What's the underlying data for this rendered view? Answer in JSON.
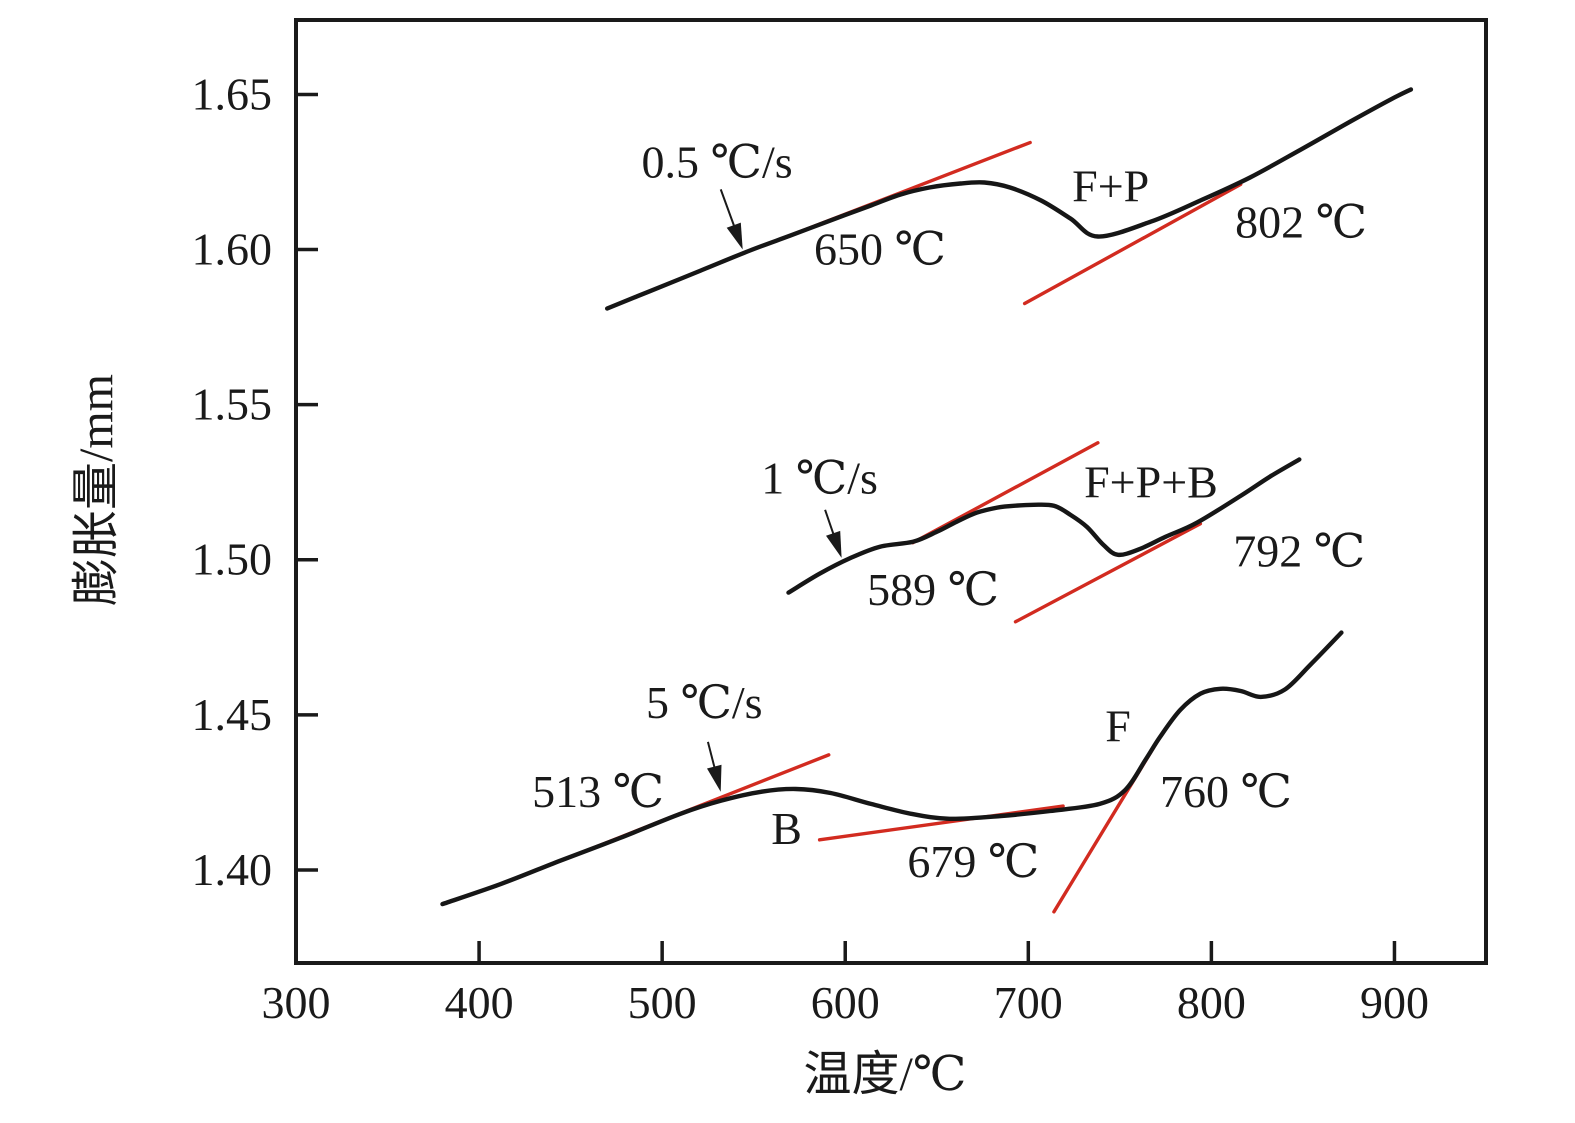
{
  "chart_data": {
    "type": "line",
    "title": "",
    "xlabel": "温度/℃",
    "ylabel": "膨胀量/mm",
    "xlim": [
      300,
      950
    ],
    "ylim": [
      1.37,
      1.674
    ],
    "grid": false,
    "legend_position": "none",
    "x_ticks": [
      "300",
      "400",
      "500",
      "600",
      "700",
      "800",
      "900"
    ],
    "y_ticks": [
      "1.40",
      "1.45",
      "1.50",
      "1.55",
      "1.60",
      "1.65"
    ],
    "series": [
      {
        "name": "0.5 ℃/s",
        "color": "#161616",
        "points": [
          [
            470,
            1.581
          ],
          [
            493,
            1.5865
          ],
          [
            521,
            1.5932
          ],
          [
            548,
            1.5997
          ],
          [
            570,
            1.6045
          ],
          [
            592,
            1.6094
          ],
          [
            614,
            1.6142
          ],
          [
            630,
            1.6177
          ],
          [
            646,
            1.62
          ],
          [
            663,
            1.6213
          ],
          [
            676,
            1.6216
          ],
          [
            690,
            1.62
          ],
          [
            707,
            1.6158
          ],
          [
            723,
            1.61
          ],
          [
            738,
            1.6042
          ],
          [
            767,
            1.609
          ],
          [
            794,
            1.6158
          ],
          [
            821,
            1.6232
          ],
          [
            849,
            1.6323
          ],
          [
            876,
            1.6413
          ],
          [
            898,
            1.6484
          ],
          [
            909,
            1.6516
          ]
        ]
      },
      {
        "name": "1 ℃/s",
        "color": "#161616",
        "points": [
          [
            569,
            1.4894
          ],
          [
            586,
            1.4955
          ],
          [
            603,
            1.5006
          ],
          [
            619,
            1.5042
          ],
          [
            637,
            1.5058
          ],
          [
            650,
            1.509
          ],
          [
            661,
            1.5123
          ],
          [
            672,
            1.5152
          ],
          [
            683,
            1.5168
          ],
          [
            692,
            1.5174
          ],
          [
            703,
            1.5177
          ],
          [
            714,
            1.5174
          ],
          [
            723,
            1.5145
          ],
          [
            732,
            1.5106
          ],
          [
            741,
            1.5048
          ],
          [
            749,
            1.5016
          ],
          [
            761,
            1.5035
          ],
          [
            775,
            1.5074
          ],
          [
            792,
            1.5119
          ],
          [
            816,
            1.5206
          ],
          [
            832,
            1.5268
          ],
          [
            848,
            1.5323
          ]
        ]
      },
      {
        "name": "5 ℃/s",
        "color": "#161616",
        "points": [
          [
            380,
            1.389
          ],
          [
            412,
            1.3955
          ],
          [
            444,
            1.4029
          ],
          [
            477,
            1.4103
          ],
          [
            510,
            1.4181
          ],
          [
            532,
            1.4223
          ],
          [
            554,
            1.4252
          ],
          [
            573,
            1.4261
          ],
          [
            592,
            1.4248
          ],
          [
            614,
            1.4213
          ],
          [
            636,
            1.4181
          ],
          [
            657,
            1.4165
          ],
          [
            685,
            1.4174
          ],
          [
            712,
            1.419
          ],
          [
            739,
            1.4213
          ],
          [
            753,
            1.4258
          ],
          [
            764,
            1.4355
          ],
          [
            772,
            1.4429
          ],
          [
            783,
            1.4516
          ],
          [
            794,
            1.4568
          ],
          [
            805,
            1.4584
          ],
          [
            816,
            1.4577
          ],
          [
            827,
            1.4558
          ],
          [
            840,
            1.4581
          ],
          [
            854,
            1.4661
          ],
          [
            871,
            1.4765
          ]
        ]
      }
    ],
    "tangent_lines": [
      {
        "name": "tangent-650",
        "color": "#d22b20",
        "from": [
          557,
          1.6016
        ],
        "to": [
          701,
          1.6345
        ]
      },
      {
        "name": "tangent-802",
        "color": "#d22b20",
        "from": [
          698,
          1.5826
        ],
        "to": [
          816,
          1.621
        ]
      },
      {
        "name": "tangent-589",
        "color": "#d22b20",
        "from": [
          637,
          1.5055
        ],
        "to": [
          738,
          1.5377
        ]
      },
      {
        "name": "tangent-792",
        "color": "#d22b20",
        "from": [
          693,
          1.48
        ],
        "to": [
          794,
          1.5116
        ]
      },
      {
        "name": "tangent-513",
        "color": "#d22b20",
        "from": [
          458,
          1.4061
        ],
        "to": [
          591,
          1.4371
        ]
      },
      {
        "name": "tangent-679",
        "color": "#d22b20",
        "from": [
          586,
          1.4097
        ],
        "to": [
          719,
          1.4206
        ]
      },
      {
        "name": "tangent-760",
        "color": "#d22b20",
        "from": [
          714,
          1.3865
        ],
        "to": [
          772,
          1.4429
        ]
      }
    ],
    "annotations": [
      {
        "name": "rate-label-0.5",
        "text": "0.5 ℃/s",
        "x": 530,
        "y": 1.6284
      },
      {
        "name": "temp-label-650",
        "text": "650 ℃",
        "x": 619,
        "y": 1.6003
      },
      {
        "name": "phase-label-fp",
        "text": "F+P",
        "x": 745,
        "y": 1.6206
      },
      {
        "name": "temp-label-802",
        "text": "802 ℃",
        "x": 849,
        "y": 1.609
      },
      {
        "name": "rate-label-1",
        "text": "1 ℃/s",
        "x": 586,
        "y": 1.5265
      },
      {
        "name": "phase-label-fpb",
        "text": "F+P+B",
        "x": 767,
        "y": 1.5252
      },
      {
        "name": "temp-label-589",
        "text": "589 ℃",
        "x": 648,
        "y": 1.4906
      },
      {
        "name": "temp-label-792",
        "text": "792 ℃",
        "x": 848,
        "y": 1.5029
      },
      {
        "name": "rate-label-5",
        "text": "5 ℃/s",
        "x": 523,
        "y": 1.4542
      },
      {
        "name": "temp-label-513",
        "text": "513 ℃",
        "x": 465,
        "y": 1.4255
      },
      {
        "name": "phase-label-b",
        "text": "B",
        "x": 568,
        "y": 1.4135
      },
      {
        "name": "temp-label-679",
        "text": "679 ℃",
        "x": 670,
        "y": 1.4029
      },
      {
        "name": "phase-label-f",
        "text": "F",
        "x": 749,
        "y": 1.4465
      },
      {
        "name": "temp-label-760",
        "text": "760 ℃",
        "x": 808,
        "y": 1.4255
      }
    ],
    "arrows": [
      {
        "name": "arrow-rate-0.5",
        "from": [
          532,
          1.6194
        ],
        "to": [
          544,
          1.6
        ]
      },
      {
        "name": "arrow-rate-1",
        "from": [
          589,
          1.5161
        ],
        "to": [
          598,
          1.5006
        ]
      },
      {
        "name": "arrow-rate-5",
        "from": [
          525,
          1.4413
        ],
        "to": [
          532,
          1.4252
        ]
      }
    ]
  },
  "colors": {
    "curve": "#161616",
    "tangent": "#d22b20",
    "axis": "#1a1a1a",
    "text": "#1a1a1a",
    "background": "#ffffff"
  }
}
